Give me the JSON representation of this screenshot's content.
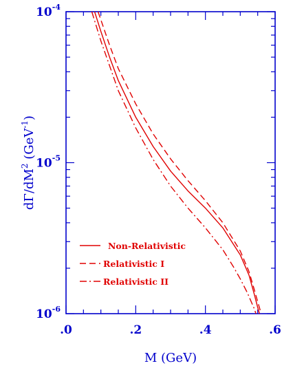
{
  "chart_data": {
    "type": "line",
    "xlabel": "M  (GeV)",
    "ylabel_main": "dΓ/dM",
    "ylabel_sup": "2",
    "ylabel_unit": " (GeV",
    "ylabel_unit_sup": "-1",
    "ylabel_close": ")",
    "xlim": [
      0.0,
      0.6
    ],
    "ylim": [
      1e-06,
      0.0001
    ],
    "y_scale": "log",
    "grid": false,
    "x_ticks": [
      {
        "value": 0.0,
        "label": ".0"
      },
      {
        "value": 0.2,
        "label": ".2"
      },
      {
        "value": 0.4,
        "label": ".4"
      },
      {
        "value": 0.6,
        "label": ".6"
      }
    ],
    "y_ticks": [
      {
        "value": 1e-06,
        "base": "10",
        "exp": "-6"
      },
      {
        "value": 1e-05,
        "base": "10",
        "exp": "-5"
      },
      {
        "value": 0.0001,
        "base": "10",
        "exp": "-4"
      }
    ],
    "legend_position": "bottom-left",
    "colors": {
      "axes": "#0000cc",
      "series": "#e00000"
    },
    "series": [
      {
        "name": "Non-Relativistic",
        "dash": "solid",
        "points": [
          [
            0.082,
            0.0001
          ],
          [
            0.1,
            7.4e-05
          ],
          [
            0.125,
            5e-05
          ],
          [
            0.15,
            3.5e-05
          ],
          [
            0.2,
            2e-05
          ],
          [
            0.25,
            1.28e-05
          ],
          [
            0.3,
            8.8e-06
          ],
          [
            0.35,
            6.5e-06
          ],
          [
            0.4,
            5e-06
          ],
          [
            0.45,
            3.7e-06
          ],
          [
            0.5,
            2.45e-06
          ],
          [
            0.525,
            1.8e-06
          ],
          [
            0.54,
            1.35e-06
          ],
          [
            0.55,
            1.1e-06
          ],
          [
            0.555,
            1e-06
          ]
        ]
      },
      {
        "name": "Relativistic I",
        "dash": "dashed",
        "points": [
          [
            0.092,
            0.0001
          ],
          [
            0.125,
            6e-05
          ],
          [
            0.15,
            4.2e-05
          ],
          [
            0.2,
            2.45e-05
          ],
          [
            0.25,
            1.55e-05
          ],
          [
            0.3,
            1.06e-05
          ],
          [
            0.35,
            7.6e-06
          ],
          [
            0.4,
            5.6e-06
          ],
          [
            0.45,
            4e-06
          ],
          [
            0.5,
            2.6e-06
          ],
          [
            0.525,
            1.9e-06
          ],
          [
            0.54,
            1.45e-06
          ],
          [
            0.55,
            1.2e-06
          ],
          [
            0.56,
            1e-06
          ]
        ]
      },
      {
        "name": "Relativistic II",
        "dash": "dashdot",
        "points": [
          [
            0.074,
            0.0001
          ],
          [
            0.1,
            6.4e-05
          ],
          [
            0.15,
            3e-05
          ],
          [
            0.2,
            1.7e-05
          ],
          [
            0.25,
            1.05e-05
          ],
          [
            0.3,
            7e-06
          ],
          [
            0.35,
            5e-06
          ],
          [
            0.4,
            3.7e-06
          ],
          [
            0.45,
            2.65e-06
          ],
          [
            0.48,
            2.05e-06
          ],
          [
            0.5,
            1.7e-06
          ],
          [
            0.52,
            1.38e-06
          ],
          [
            0.54,
            1.08e-06
          ],
          [
            0.545,
            1e-06
          ]
        ]
      }
    ]
  }
}
